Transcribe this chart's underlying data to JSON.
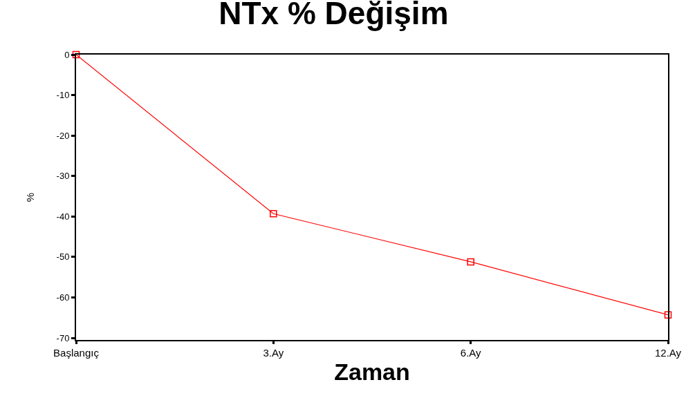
{
  "chart_data": {
    "type": "line",
    "title": "NTx % Değişim",
    "xlabel": "Zaman",
    "ylabel": "%",
    "categories": [
      "Başlangıç",
      "3.Ay",
      "6.Ay",
      "12.Ay"
    ],
    "series": [
      {
        "color": "#ff0000",
        "values": [
          0,
          -39.3,
          -51.2,
          -64.3
        ]
      }
    ],
    "ylim": [
      -70.5,
      0
    ],
    "yticks": [
      0,
      -10,
      -20,
      -30,
      -40,
      -50,
      -60,
      -70
    ],
    "grid": false,
    "marker": "square",
    "line_style": "solid"
  }
}
